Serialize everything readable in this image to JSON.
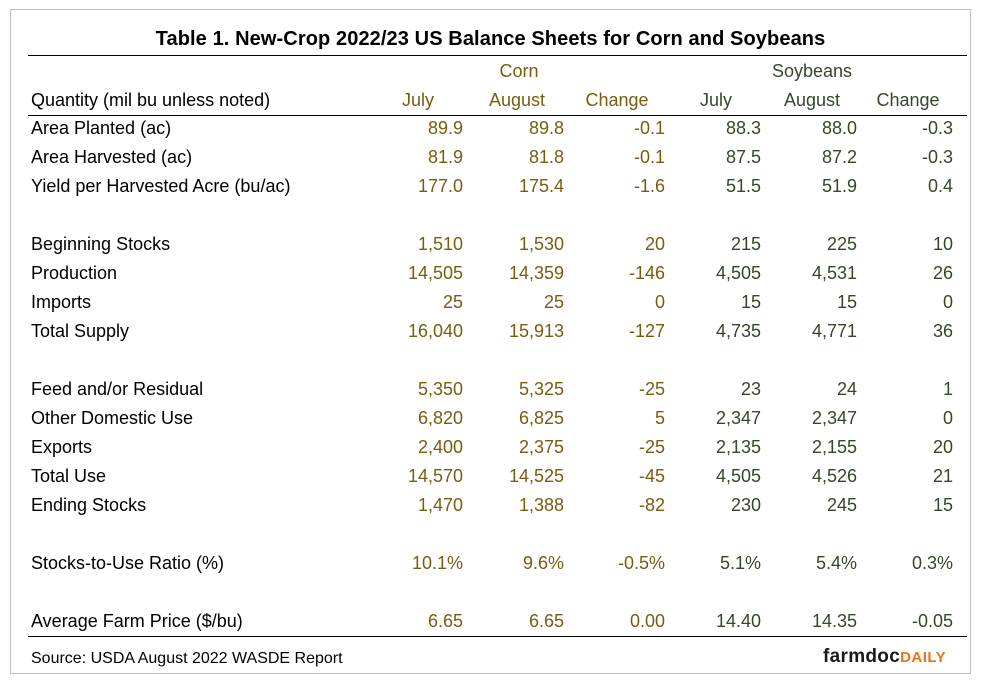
{
  "title": "Table 1. New-Crop 2022/23 US Balance Sheets for Corn and Soybeans",
  "group_headers": {
    "corn": "Corn",
    "soybeans": "Soybeans"
  },
  "column_headers": {
    "quantity": "Quantity (mil bu unless noted)",
    "corn_july": "July",
    "corn_august": "August",
    "corn_change": "Change",
    "soy_july": "July",
    "soy_august": "August",
    "soy_change": "Change"
  },
  "rows": [
    {
      "label": "Area Planted (ac)",
      "values": [
        "89.9",
        "89.8",
        "-0.1",
        "88.3",
        "88.0",
        "-0.3"
      ]
    },
    {
      "label": "Area Harvested (ac)",
      "values": [
        "81.9",
        "81.8",
        "-0.1",
        "87.5",
        "87.2",
        "-0.3"
      ]
    },
    {
      "label": "Yield per Harvested Acre (bu/ac)",
      "values": [
        "177.0",
        "175.4",
        "-1.6",
        "51.5",
        "51.9",
        "0.4"
      ]
    },
    {
      "label": "Beginning Stocks",
      "values": [
        "1,510",
        "1,530",
        "20",
        "215",
        "225",
        "10"
      ]
    },
    {
      "label": "Production",
      "values": [
        "14,505",
        "14,359",
        "-146",
        "4,505",
        "4,531",
        "26"
      ]
    },
    {
      "label": "Imports",
      "values": [
        "25",
        "25",
        "0",
        "15",
        "15",
        "0"
      ]
    },
    {
      "label": "Total Supply",
      "values": [
        "16,040",
        "15,913",
        "-127",
        "4,735",
        "4,771",
        "36"
      ]
    },
    {
      "label": "Feed and/or Residual",
      "values": [
        "5,350",
        "5,325",
        "-25",
        "23",
        "24",
        "1"
      ]
    },
    {
      "label": "Other Domestic Use",
      "values": [
        "6,820",
        "6,825",
        "5",
        "2,347",
        "2,347",
        "0"
      ]
    },
    {
      "label": "Exports",
      "values": [
        "2,400",
        "2,375",
        "-25",
        "2,135",
        "2,155",
        "20"
      ]
    },
    {
      "label": "Total Use",
      "values": [
        "14,570",
        "14,525",
        "-45",
        "4,505",
        "4,526",
        "21"
      ]
    },
    {
      "label": "Ending Stocks",
      "values": [
        "1,470",
        "1,388",
        "-82",
        "230",
        "245",
        "15"
      ]
    },
    {
      "label": "Stocks-to-Use Ratio (%)",
      "values": [
        "10.1%",
        "9.6%",
        "-0.5%",
        "5.1%",
        "5.4%",
        "0.3%"
      ]
    },
    {
      "label": "Average Farm Price ($/bu)",
      "values": [
        "6.65",
        "6.65",
        "0.00",
        "14.40",
        "14.35",
        "-0.05"
      ]
    }
  ],
  "source": "Source: USDA August 2022 WASDE Report",
  "logo": {
    "part1": "farmdoc",
    "part2": "DAILY"
  },
  "colors": {
    "corn": "#7a5c10",
    "soybeans": "#34472a",
    "logo_accent": "#e8731a"
  }
}
